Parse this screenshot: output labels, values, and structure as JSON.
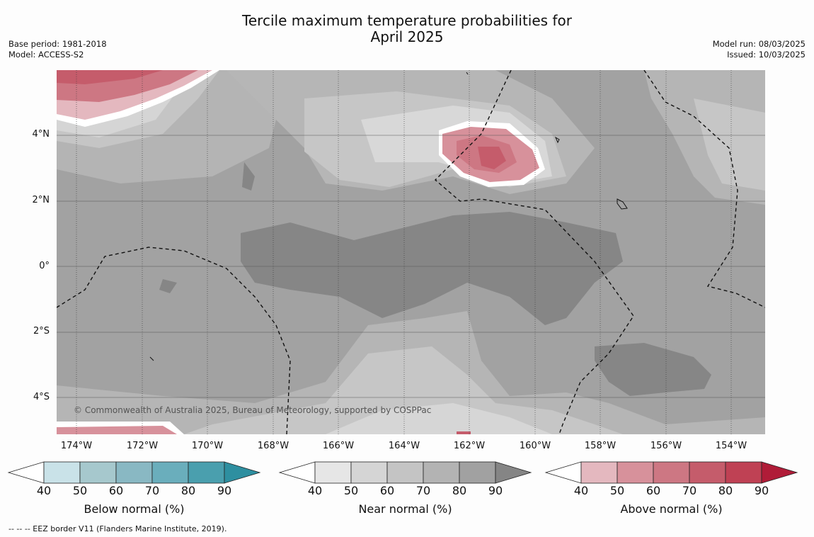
{
  "title": {
    "line1": "Tercile maximum temperature probabilities for",
    "line2": "April 2025"
  },
  "meta_left": {
    "base_period": "Base period: 1981-2018",
    "model": "Model: ACCESS-S2"
  },
  "meta_right": {
    "model_run": "Model run: 08/03/2025",
    "issued": "Issued: 10/03/2025"
  },
  "map": {
    "lat_labels": [
      "4°N",
      "2°N",
      "0°",
      "2°S",
      "4°S"
    ],
    "lon_labels": [
      "174°W",
      "172°W",
      "170°W",
      "168°W",
      "166°W",
      "164°W",
      "162°W",
      "160°W",
      "158°W",
      "156°W",
      "154°W"
    ],
    "copyright": "© Commonwealth of Australia 2025, Bureau of Meteorology, supported by COSPPac"
  },
  "colorbars": [
    {
      "name": "Below normal (%)",
      "ticks": [
        "40",
        "50",
        "60",
        "70",
        "80",
        "90"
      ],
      "colors": [
        "#ffffff",
        "#c9e2e8",
        "#a6c8cd",
        "#89b8c3",
        "#6aaebc",
        "#4a9fae",
        "#2e8fa0"
      ]
    },
    {
      "name": "Near normal (%)",
      "ticks": [
        "40",
        "50",
        "60",
        "70",
        "80",
        "90"
      ],
      "colors": [
        "#ffffff",
        "#e6e6e6",
        "#d5d5d5",
        "#c4c4c4",
        "#b3b3b3",
        "#a1a1a1",
        "#858585"
      ]
    },
    {
      "name": "Above normal (%)",
      "ticks": [
        "40",
        "50",
        "60",
        "70",
        "80",
        "90"
      ],
      "colors": [
        "#ffffff",
        "#e4b8bf",
        "#d7919b",
        "#cd7783",
        "#c55c6b",
        "#bf4154",
        "#b01c38"
      ]
    }
  ],
  "footnote": "--  --  -- EEZ border V11 (Flanders Marine Institute, 2019)."
}
